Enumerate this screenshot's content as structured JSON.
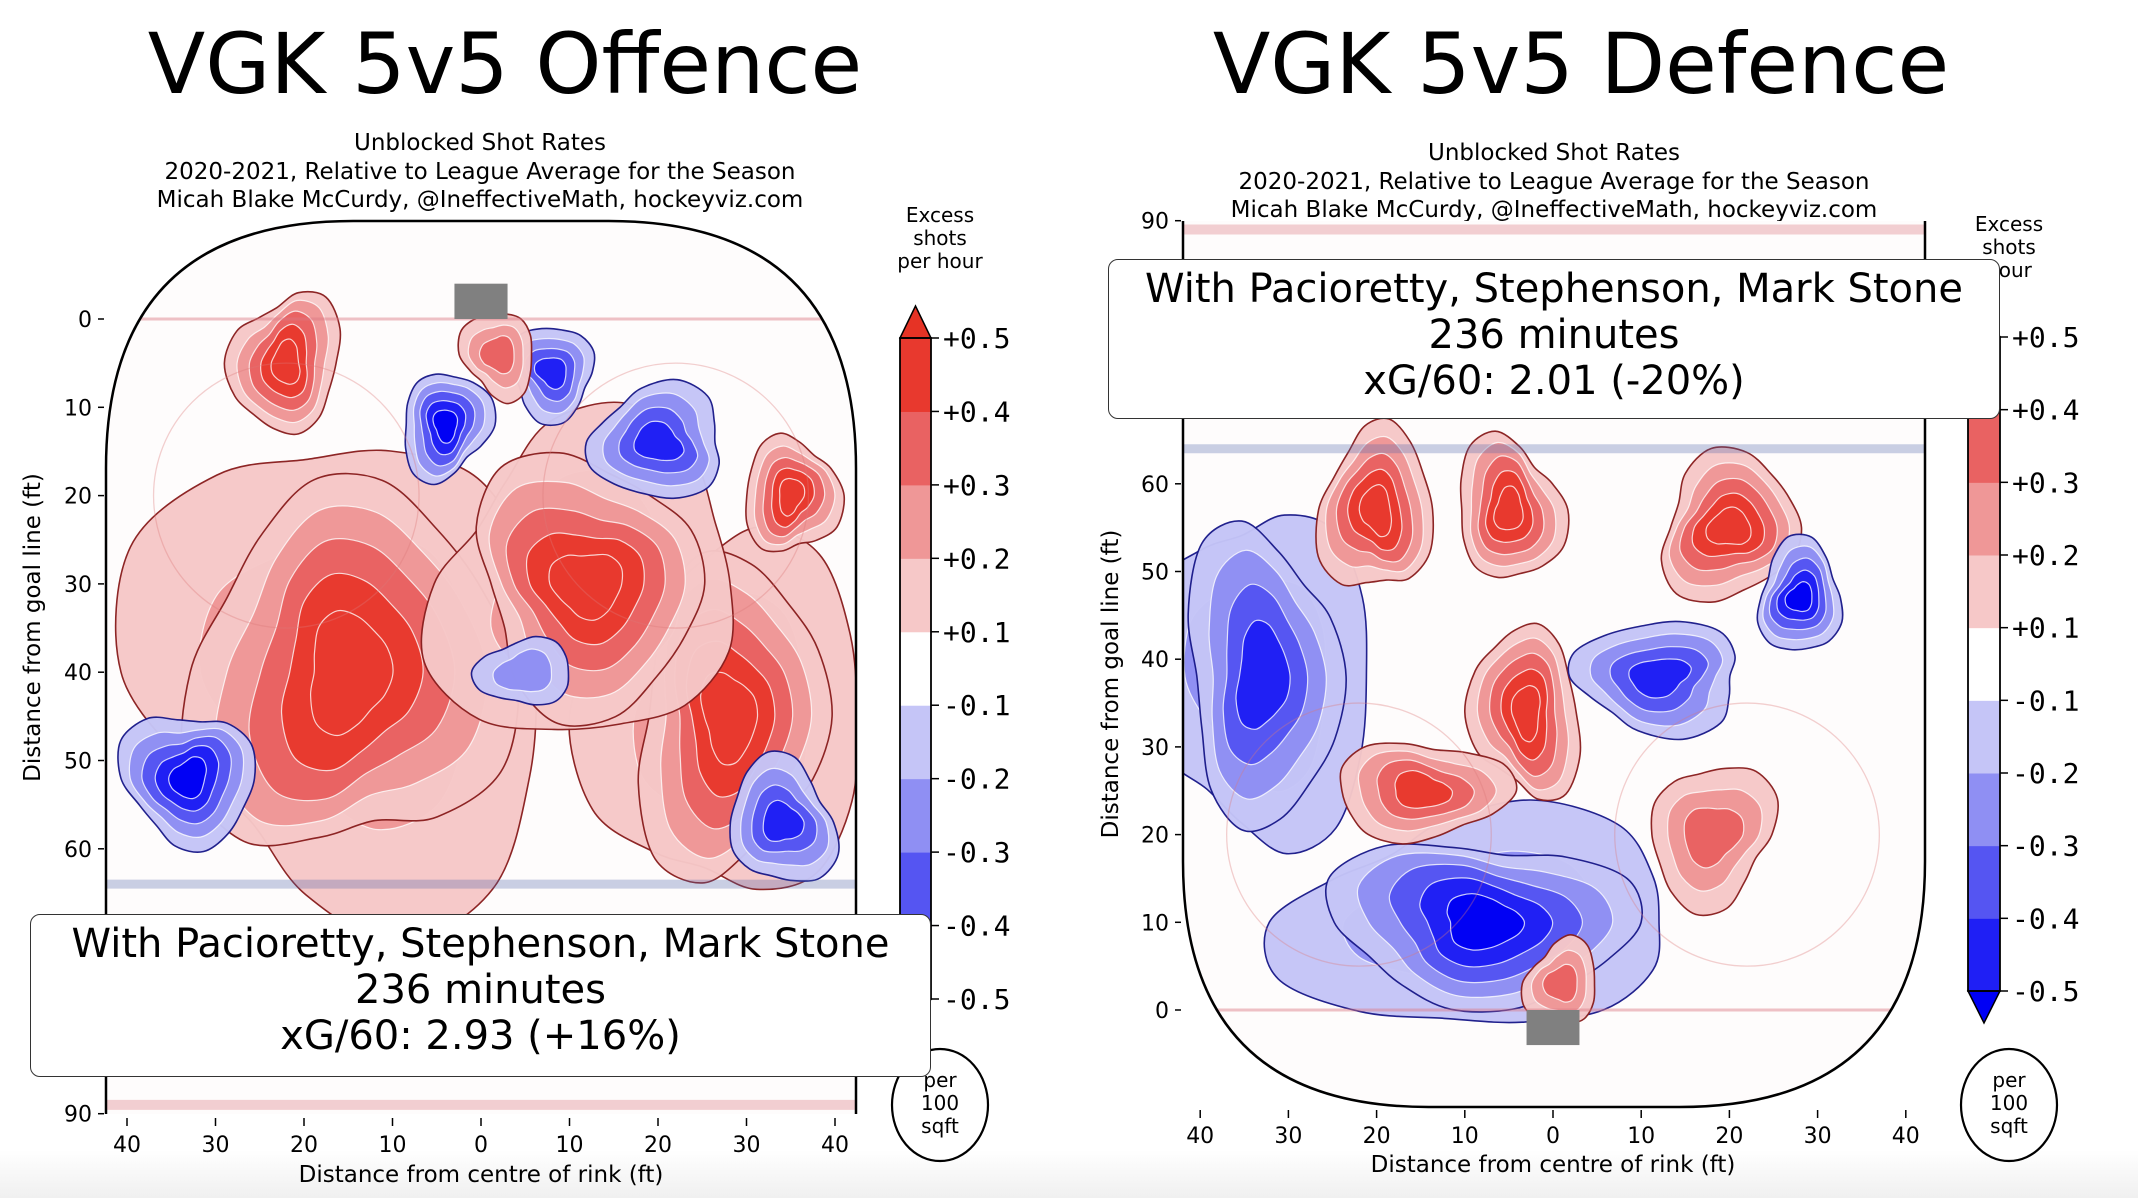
{
  "charts": [
    {
      "id": "offence",
      "title": "VGK 5v5 Offence",
      "subtitle_lines": [
        "Unblocked Shot Rates",
        "2020-2021, Relative to League Average for the Season",
        "Micah Blake McCurdy, @IneffectiveMath, hockeyviz.com"
      ],
      "annotation": {
        "line1": "With Pacioretty, Stephenson, Mark Stone",
        "line2": "236 minutes",
        "line3": "xG/60: 2.93 (+16%)"
      },
      "colorbar_title": [
        "Excess",
        "shots",
        "per hour"
      ],
      "unit_badge": [
        "per",
        "100",
        "sqft"
      ]
    },
    {
      "id": "defence",
      "title": "VGK 5v5 Defence",
      "subtitle_lines": [
        "Unblocked Shot Rates",
        "2020-2021, Relative to League Average for the Season",
        "Micah Blake McCurdy, @IneffectiveMath, hockeyviz.com"
      ],
      "annotation": {
        "line1": "With Pacioretty, Stephenson, Mark Stone",
        "line2": "236 minutes",
        "line3": "xG/60: 2.01 (-20%)"
      },
      "colorbar_title": [
        "Excess",
        "shots",
        "hour"
      ],
      "unit_badge": [
        "per",
        "100",
        "sqft"
      ]
    }
  ],
  "chart_data": [
    {
      "type": "heatmap",
      "title": "VGK 5v5 Offence",
      "subtitle": "Unblocked Shot Rates; 2020-2021, Relative to League Average for the Season",
      "xlabel": "Distance from centre of rink (ft)",
      "ylabel": "Distance from goal line (ft)",
      "x_ticks": [
        -40,
        -30,
        -20,
        -10,
        0,
        10,
        20,
        30,
        40
      ],
      "x_tick_labels": [
        "40",
        "30",
        "20",
        "10",
        "0",
        "10",
        "20",
        "30",
        "40"
      ],
      "y_ticks": [
        0,
        10,
        20,
        30,
        40,
        50,
        60,
        90
      ],
      "y_tick_labels": [
        "0",
        "10",
        "20",
        "30",
        "40",
        "50",
        "60",
        "90"
      ],
      "y_inverted": true,
      "xlim": [
        -42.5,
        42.5
      ],
      "ylim": [
        -11,
        90
      ],
      "colorbar": {
        "title": "Excess shots per hour",
        "unit": "per 100 sqft",
        "levels": [
          -0.5,
          -0.4,
          -0.3,
          -0.2,
          -0.1,
          0.1,
          0.2,
          0.3,
          0.4,
          0.5
        ],
        "tick_labels": [
          "+0.5",
          "+0.4",
          "+0.3",
          "+0.2",
          "+0.1",
          "-0.1",
          "-0.2",
          "-0.3",
          "-0.4",
          "-0.5"
        ],
        "extend": "both"
      },
      "regions": [
        {
          "label": "left slot/high slot mass",
          "x": -15,
          "y": 40,
          "value": 0.5
        },
        {
          "label": "right-centre mass",
          "x": 12,
          "y": 30,
          "value": 0.5
        },
        {
          "label": "right point mass",
          "x": 28,
          "y": 45,
          "value": 0.5
        },
        {
          "label": "left circle top",
          "x": -22,
          "y": 5,
          "value": 0.45
        },
        {
          "label": "crease",
          "x": 2,
          "y": 4,
          "value": 0.3
        },
        {
          "label": "left of crease cold spot",
          "x": -4,
          "y": 12,
          "value": -0.45
        },
        {
          "label": "right of crease cold",
          "x": 8,
          "y": 6,
          "value": -0.35
        },
        {
          "label": "right circle cold",
          "x": 20,
          "y": 14,
          "value": -0.35
        },
        {
          "label": "right faceoff hot",
          "x": 35,
          "y": 20,
          "value": 0.45
        },
        {
          "label": "left point cold spot",
          "x": -33,
          "y": 52,
          "value": -0.5
        },
        {
          "label": "right point cold",
          "x": 34,
          "y": 57,
          "value": -0.35
        },
        {
          "label": "centre holes",
          "x": 5,
          "y": 40,
          "value": -0.15
        }
      ]
    },
    {
      "type": "heatmap",
      "title": "VGK 5v5 Defence",
      "subtitle": "Unblocked Shot Rates; 2020-2021, Relative to League Average for the Season",
      "xlabel": "Distance from centre of rink (ft)",
      "ylabel": "Distance from goal line (ft)",
      "x_ticks": [
        -40,
        -30,
        -20,
        -10,
        0,
        10,
        20,
        30,
        40
      ],
      "x_tick_labels": [
        "40",
        "30",
        "20",
        "10",
        "0",
        "10",
        "20",
        "30",
        "40"
      ],
      "y_ticks": [
        0,
        10,
        20,
        30,
        40,
        50,
        60,
        90
      ],
      "y_tick_labels": [
        "0",
        "10",
        "20",
        "30",
        "40",
        "50",
        "60",
        "90"
      ],
      "y_inverted": false,
      "xlim": [
        -42.5,
        42.5
      ],
      "ylim": [
        -11,
        90
      ],
      "colorbar": {
        "title": "Excess shots per hour",
        "unit": "per 100 sqft",
        "levels": [
          -0.5,
          -0.4,
          -0.3,
          -0.2,
          -0.1,
          0.1,
          0.2,
          0.3,
          0.4,
          0.5
        ],
        "tick_labels": [
          "+0.5",
          "+0.4",
          "+0.3",
          "+0.2",
          "+0.1",
          "-0.1",
          "-0.2",
          "-0.3",
          "-0.4",
          "-0.5"
        ],
        "extend": "both"
      },
      "regions": [
        {
          "label": "left high hot",
          "x": -20,
          "y": 57,
          "value": 0.45
        },
        {
          "label": "centre high hot",
          "x": -5,
          "y": 57,
          "value": 0.45
        },
        {
          "label": "right high hot",
          "x": 20,
          "y": 55,
          "value": 0.45
        },
        {
          "label": "right point cold spot",
          "x": 28,
          "y": 47,
          "value": -0.5
        },
        {
          "label": "left wall cold",
          "x": -33,
          "y": 38,
          "value": -0.4
        },
        {
          "label": "slot hot",
          "x": -3,
          "y": 34,
          "value": 0.45
        },
        {
          "label": "left circle hot",
          "x": -15,
          "y": 25,
          "value": 0.4
        },
        {
          "label": "low slot cold",
          "x": -8,
          "y": 10,
          "value": -0.5
        },
        {
          "label": "crease hot",
          "x": 1,
          "y": 3,
          "value": 0.3
        },
        {
          "label": "right circle warm",
          "x": 18,
          "y": 20,
          "value": 0.3
        },
        {
          "label": "centre-right cold",
          "x": 12,
          "y": 38,
          "value": -0.35
        }
      ]
    }
  ]
}
